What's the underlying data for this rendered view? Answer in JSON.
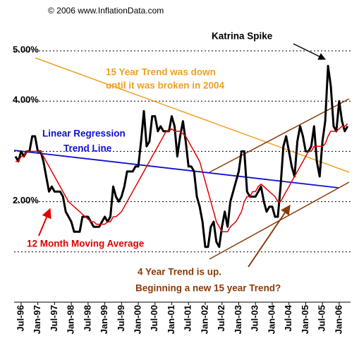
{
  "chart_data": {
    "type": "line",
    "credit": "© 2006 www.InflationData.com",
    "annotations": {
      "katrina": "Katrina Spike",
      "fifteen_year_1": "15 Year Trend was down",
      "fifteen_year_2": "until it was broken in 2004",
      "regression_1": "Linear Regression",
      "regression_2": "Trend Line",
      "four_year_1": "4 Year Trend is up.",
      "four_year_2": "Beginning a new 15 year Trend?"
    },
    "categories": [
      null,
      null,
      "Jul-96",
      null,
      null,
      null,
      null,
      null,
      "Jan-97",
      null,
      null,
      null,
      null,
      null,
      "Jul-97",
      null,
      null,
      null,
      null,
      null,
      "Jan-98",
      null,
      null,
      null,
      null,
      null,
      "Jul-98",
      null,
      null,
      null,
      null,
      null,
      "Jan-99",
      null,
      null,
      null,
      null,
      null,
      "Jul-99",
      null,
      null,
      null,
      null,
      null,
      "Jan-00",
      null,
      null,
      null,
      null,
      null,
      "Jul-00",
      null,
      null,
      null,
      null,
      null,
      "Jan-01",
      null,
      null,
      null,
      null,
      null,
      "Jul-01",
      null,
      null,
      null,
      null,
      null,
      "Jan-02",
      null,
      null,
      null,
      null,
      null,
      "Jul-02",
      null,
      null,
      null,
      null,
      null,
      "Jan-03",
      null,
      null,
      null,
      null,
      null,
      "Jul-03",
      null,
      null,
      null,
      null,
      null,
      "Jan-04",
      null,
      null,
      null,
      null,
      null,
      "Jul-04",
      null,
      null,
      null,
      null,
      null,
      "Jan-05",
      null,
      null,
      null,
      null,
      null,
      "Jul-05",
      null,
      null,
      null,
      null,
      null,
      "Jan-06",
      null,
      null,
      null
    ],
    "series": [
      {
        "color": "#000000",
        "width": 3,
        "values": [
          2.9,
          2.8,
          3.0,
          2.9,
          3.0,
          3.0,
          3.3,
          3.3,
          3.0,
          3.0,
          2.8,
          2.5,
          2.2,
          2.3,
          2.2,
          2.2,
          2.2,
          2.1,
          1.8,
          1.7,
          1.6,
          1.4,
          1.4,
          1.4,
          1.7,
          1.7,
          1.7,
          1.6,
          1.5,
          1.5,
          1.5,
          1.6,
          1.7,
          1.6,
          1.7,
          2.3,
          2.1,
          2.0,
          2.1,
          2.3,
          2.6,
          2.6,
          2.6,
          2.7,
          2.7,
          3.2,
          3.8,
          3.1,
          3.2,
          3.7,
          3.7,
          3.4,
          3.5,
          3.4,
          3.4,
          3.4,
          3.7,
          3.5,
          2.9,
          3.3,
          3.6,
          3.2,
          2.7,
          2.7,
          2.6,
          2.1,
          1.9,
          1.6,
          1.1,
          1.1,
          1.5,
          1.6,
          1.2,
          1.1,
          1.5,
          1.8,
          1.5,
          2.0,
          2.2,
          2.4,
          2.6,
          3.0,
          3.0,
          2.2,
          2.1,
          2.1,
          2.1,
          2.2,
          2.3,
          2.0,
          1.8,
          1.9,
          1.9,
          1.7,
          1.7,
          2.3,
          3.1,
          3.3,
          3.0,
          2.7,
          2.5,
          3.2,
          3.5,
          3.3,
          3.0,
          3.0,
          3.1,
          3.5,
          2.8,
          2.5,
          3.2,
          3.6,
          4.7,
          4.3,
          3.5,
          3.4,
          4.0,
          3.6,
          3.4,
          3.5
        ]
      },
      {
        "name": "12 Month Moving Average",
        "color": "#e00000",
        "width": 1.5,
        "values": [
          2.8,
          2.8,
          2.9,
          2.9,
          3.0,
          3.0,
          3.0,
          3.0,
          3.0,
          3.0,
          2.9,
          2.8,
          2.7,
          2.6,
          2.5,
          2.4,
          2.3,
          2.2,
          2.1,
          2.0,
          1.95,
          1.9,
          1.85,
          1.8,
          1.75,
          1.7,
          1.65,
          1.6,
          1.6,
          1.55,
          1.55,
          1.55,
          1.55,
          1.6,
          1.6,
          1.7,
          1.7,
          1.75,
          1.8,
          1.9,
          2.0,
          2.1,
          2.2,
          2.3,
          2.4,
          2.5,
          2.6,
          2.7,
          2.8,
          2.9,
          3.0,
          3.1,
          3.2,
          3.3,
          3.4,
          3.4,
          3.45,
          3.4,
          3.4,
          3.4,
          3.35,
          3.3,
          3.2,
          3.1,
          3.0,
          2.9,
          2.8,
          2.6,
          2.4,
          2.2,
          2.0,
          1.8,
          1.6,
          1.5,
          1.4,
          1.4,
          1.4,
          1.5,
          1.55,
          1.6,
          1.7,
          1.8,
          2.0,
          2.1,
          2.1,
          2.2,
          2.2,
          2.3,
          2.35,
          2.3,
          2.25,
          2.2,
          2.15,
          2.1,
          2.0,
          2.0,
          2.1,
          2.2,
          2.3,
          2.4,
          2.5,
          2.6,
          2.7,
          2.8,
          2.9,
          3.0,
          3.0,
          3.1,
          3.1,
          3.1,
          3.1,
          3.15,
          3.3,
          3.4,
          3.4,
          3.4,
          3.45,
          3.5,
          3.5,
          3.55
        ]
      }
    ],
    "ylim": [
      0,
      6
    ],
    "yticks": [
      {
        "value": 2,
        "label": "2.00%"
      },
      {
        "value": 4,
        "label": "4.00%"
      },
      {
        "value": 5,
        "label": "5.00%"
      }
    ],
    "unlabeled_gridlines": [
      1,
      3
    ],
    "grid": true
  }
}
